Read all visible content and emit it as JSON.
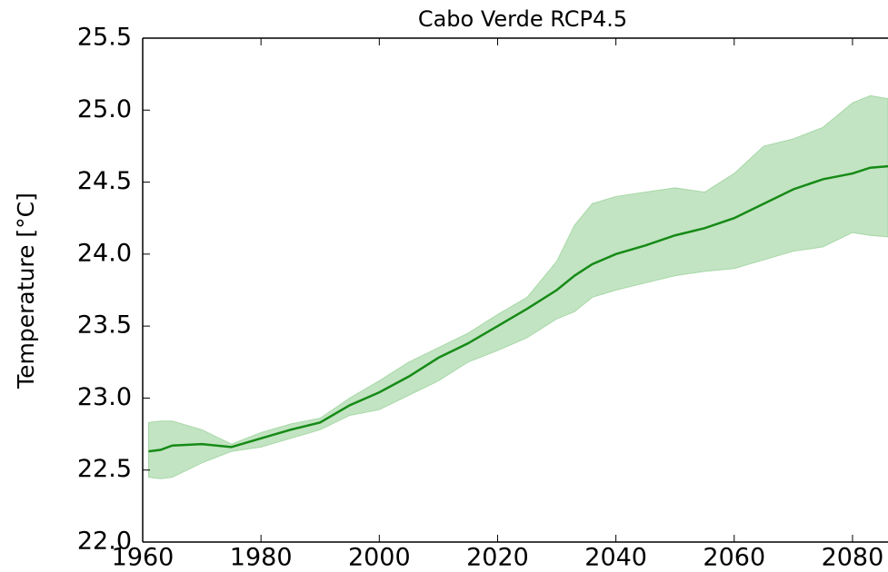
{
  "chart_data": {
    "type": "line",
    "title": "Cabo Verde  RCP4.5",
    "y_label": "Temperature [°C]",
    "x": [
      1961,
      1963,
      1965,
      1970,
      1975,
      1980,
      1985,
      1990,
      1995,
      2000,
      2005,
      2010,
      2015,
      2020,
      2025,
      2030,
      2033,
      2036,
      2040,
      2045,
      2050,
      2055,
      2060,
      2065,
      2070,
      2075,
      2080,
      2083,
      2086
    ],
    "series": [
      {
        "color": "#168a16",
        "values": [
          22.63,
          22.64,
          22.67,
          22.68,
          22.66,
          22.72,
          22.78,
          22.83,
          22.95,
          23.04,
          23.15,
          23.28,
          23.38,
          23.5,
          23.62,
          23.75,
          23.85,
          23.93,
          24.0,
          24.06,
          24.13,
          24.18,
          24.25,
          24.35,
          24.45,
          24.52,
          24.56,
          24.6,
          24.61
        ]
      }
    ],
    "band": {
      "color": "#a8d8a8",
      "upper": [
        22.83,
        22.84,
        22.84,
        22.78,
        22.68,
        22.76,
        22.82,
        22.86,
        23.0,
        23.12,
        23.25,
        23.35,
        23.45,
        23.58,
        23.7,
        23.95,
        24.2,
        24.35,
        24.4,
        24.43,
        24.46,
        24.43,
        24.56,
        24.75,
        24.8,
        24.88,
        25.05,
        25.1,
        25.08
      ],
      "lower": [
        22.45,
        22.44,
        22.45,
        22.55,
        22.63,
        22.66,
        22.72,
        22.78,
        22.88,
        22.92,
        23.02,
        23.12,
        23.25,
        23.33,
        23.42,
        23.55,
        23.6,
        23.7,
        23.75,
        23.8,
        23.85,
        23.88,
        23.9,
        23.96,
        24.02,
        24.05,
        24.15,
        24.13,
        24.12
      ]
    },
    "xlim": [
      1960,
      2086
    ],
    "xticks": [
      1960,
      1980,
      2000,
      2020,
      2040,
      2060,
      2080
    ],
    "ylim": [
      22.0,
      25.5
    ],
    "yticks": [
      {
        "value": 22.0,
        "label": "22.0"
      },
      22.5,
      {
        "value": 23.0,
        "label": "23.0"
      },
      23.5,
      {
        "value": 24.0,
        "label": "24.0"
      },
      24.5,
      {
        "value": 25.0,
        "label": "25.0"
      },
      25.5
    ]
  }
}
